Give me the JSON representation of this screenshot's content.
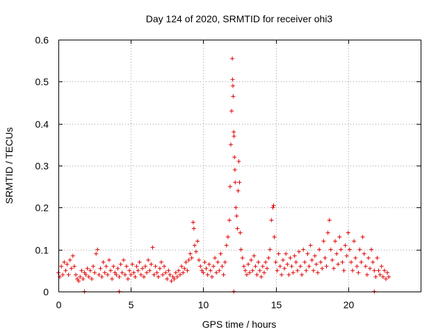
{
  "chart_data": {
    "type": "scatter",
    "title": "Day 124 of 2020, SRMTID for receiver ohi3",
    "xlabel": "GPS time / hours",
    "ylabel": "SRMTID / TECUs",
    "xlim": [
      0,
      25
    ],
    "ylim": [
      0,
      0.6
    ],
    "xticks": [
      0,
      5,
      10,
      15,
      20
    ],
    "xtick_labels": [
      "0",
      "5",
      "10",
      "15",
      "20"
    ],
    "yticks": [
      0,
      0.1,
      0.2,
      0.3,
      0.4,
      0.5,
      0.6
    ],
    "ytick_labels": [
      "0",
      "0.1",
      "0.2",
      "0.3",
      "0.4",
      "0.5",
      "0.6"
    ],
    "grid": true,
    "marker": "+",
    "color": "#e00000",
    "series": [
      {
        "name": "ohi3",
        "points": [
          [
            0.0,
            0.045
          ],
          [
            0.1,
            0.035
          ],
          [
            0.2,
            0.06
          ],
          [
            0.3,
            0.04
          ],
          [
            0.4,
            0.07
          ],
          [
            0.5,
            0.05
          ],
          [
            0.6,
            0.065
          ],
          [
            0.7,
            0.04
          ],
          [
            0.8,
            0.075
          ],
          [
            0.9,
            0.055
          ],
          [
            1.0,
            0.085
          ],
          [
            1.1,
            0.06
          ],
          [
            1.2,
            0.04
          ],
          [
            1.3,
            0.03
          ],
          [
            1.4,
            0.025
          ],
          [
            1.5,
            0.035
          ],
          [
            1.6,
            0.05
          ],
          [
            1.7,
            0.03
          ],
          [
            1.8,
            0.045
          ],
          [
            1.9,
            0.04
          ],
          [
            2.0,
            0.055
          ],
          [
            2.1,
            0.035
          ],
          [
            2.2,
            0.05
          ],
          [
            2.3,
            0.03
          ],
          [
            2.4,
            0.06
          ],
          [
            2.5,
            0.045
          ],
          [
            2.6,
            0.09
          ],
          [
            2.7,
            0.1
          ],
          [
            2.8,
            0.04
          ],
          [
            2.9,
            0.055
          ],
          [
            3.0,
            0.035
          ],
          [
            3.1,
            0.07
          ],
          [
            3.2,
            0.045
          ],
          [
            3.3,
            0.06
          ],
          [
            3.4,
            0.04
          ],
          [
            3.5,
            0.075
          ],
          [
            3.6,
            0.05
          ],
          [
            3.7,
            0.03
          ],
          [
            3.8,
            0.06
          ],
          [
            3.9,
            0.045
          ],
          [
            4.0,
            0.04
          ],
          [
            4.1,
            0.055
          ],
          [
            4.2,
            0.035
          ],
          [
            4.3,
            0.065
          ],
          [
            4.4,
            0.045
          ],
          [
            4.5,
            0.075
          ],
          [
            4.6,
            0.04
          ],
          [
            4.7,
            0.06
          ],
          [
            4.8,
            0.03
          ],
          [
            4.9,
            0.05
          ],
          [
            5.0,
            0.04
          ],
          [
            5.1,
            0.065
          ],
          [
            5.2,
            0.045
          ],
          [
            5.3,
            0.035
          ],
          [
            5.4,
            0.06
          ],
          [
            5.5,
            0.05
          ],
          [
            5.6,
            0.07
          ],
          [
            5.7,
            0.04
          ],
          [
            5.8,
            0.055
          ],
          [
            5.9,
            0.035
          ],
          [
            6.0,
            0.06
          ],
          [
            6.1,
            0.045
          ],
          [
            6.2,
            0.075
          ],
          [
            6.3,
            0.05
          ],
          [
            6.4,
            0.065
          ],
          [
            6.5,
            0.105
          ],
          [
            6.6,
            0.04
          ],
          [
            6.7,
            0.06
          ],
          [
            6.8,
            0.045
          ],
          [
            6.9,
            0.035
          ],
          [
            7.0,
            0.055
          ],
          [
            7.1,
            0.07
          ],
          [
            7.2,
            0.04
          ],
          [
            7.3,
            0.06
          ],
          [
            7.4,
            0.045
          ],
          [
            7.5,
            0.03
          ],
          [
            7.6,
            0.05
          ],
          [
            7.7,
            0.04
          ],
          [
            7.8,
            0.025
          ],
          [
            7.9,
            0.035
          ],
          [
            8.0,
            0.03
          ],
          [
            8.1,
            0.045
          ],
          [
            8.2,
            0.035
          ],
          [
            8.3,
            0.05
          ],
          [
            8.4,
            0.04
          ],
          [
            8.5,
            0.06
          ],
          [
            8.6,
            0.045
          ],
          [
            8.7,
            0.055
          ],
          [
            8.8,
            0.07
          ],
          [
            8.9,
            0.05
          ],
          [
            9.0,
            0.075
          ],
          [
            9.1,
            0.09
          ],
          [
            9.2,
            0.08
          ],
          [
            9.3,
            0.165
          ],
          [
            9.35,
            0.15
          ],
          [
            9.4,
            0.11
          ],
          [
            9.5,
            0.095
          ],
          [
            9.6,
            0.12
          ],
          [
            9.7,
            0.075
          ],
          [
            9.8,
            0.06
          ],
          [
            9.9,
            0.05
          ],
          [
            10.0,
            0.045
          ],
          [
            10.1,
            0.07
          ],
          [
            10.2,
            0.055
          ],
          [
            10.3,
            0.04
          ],
          [
            10.4,
            0.065
          ],
          [
            10.5,
            0.05
          ],
          [
            10.6,
            0.035
          ],
          [
            10.7,
            0.06
          ],
          [
            10.8,
            0.08
          ],
          [
            10.9,
            0.045
          ],
          [
            11.0,
            0.07
          ],
          [
            11.1,
            0.05
          ],
          [
            11.2,
            0.09
          ],
          [
            11.3,
            0.06
          ],
          [
            11.4,
            0.04
          ],
          [
            11.5,
            0.07
          ],
          [
            11.6,
            0.11
          ],
          [
            11.7,
            0.13
          ],
          [
            11.8,
            0.17
          ],
          [
            11.85,
            0.25
          ],
          [
            11.9,
            0.35
          ],
          [
            11.95,
            0.43
          ],
          [
            12.0,
            0.555
          ],
          [
            12.02,
            0.505
          ],
          [
            12.04,
            0.49
          ],
          [
            12.06,
            0.465
          ],
          [
            12.1,
            0.38
          ],
          [
            12.12,
            0.37
          ],
          [
            12.15,
            0.32
          ],
          [
            12.18,
            0.29
          ],
          [
            12.2,
            0.26
          ],
          [
            12.25,
            0.2
          ],
          [
            12.3,
            0.18
          ],
          [
            12.35,
            0.15
          ],
          [
            12.4,
            0.24
          ],
          [
            12.45,
            0.31
          ],
          [
            12.5,
            0.26
          ],
          [
            12.55,
            0.14
          ],
          [
            12.6,
            0.1
          ],
          [
            12.7,
            0.08
          ],
          [
            12.8,
            0.06
          ],
          [
            12.9,
            0.05
          ],
          [
            13.0,
            0.04
          ],
          [
            13.1,
            0.065
          ],
          [
            13.2,
            0.045
          ],
          [
            13.3,
            0.075
          ],
          [
            13.4,
            0.05
          ],
          [
            13.5,
            0.085
          ],
          [
            13.6,
            0.06
          ],
          [
            13.7,
            0.04
          ],
          [
            13.8,
            0.07
          ],
          [
            13.9,
            0.05
          ],
          [
            14.0,
            0.035
          ],
          [
            14.1,
            0.06
          ],
          [
            14.2,
            0.045
          ],
          [
            14.3,
            0.07
          ],
          [
            14.4,
            0.055
          ],
          [
            14.5,
            0.08
          ],
          [
            14.6,
            0.1
          ],
          [
            14.7,
            0.17
          ],
          [
            14.8,
            0.2
          ],
          [
            14.85,
            0.205
          ],
          [
            14.9,
            0.13
          ],
          [
            15.0,
            0.07
          ],
          [
            15.1,
            0.05
          ],
          [
            15.2,
            0.09
          ],
          [
            15.3,
            0.06
          ],
          [
            15.4,
            0.04
          ],
          [
            15.5,
            0.075
          ],
          [
            15.6,
            0.055
          ],
          [
            15.7,
            0.09
          ],
          [
            15.8,
            0.065
          ],
          [
            15.9,
            0.04
          ],
          [
            16.0,
            0.08
          ],
          [
            16.1,
            0.06
          ],
          [
            16.2,
            0.045
          ],
          [
            16.3,
            0.085
          ],
          [
            16.4,
            0.07
          ],
          [
            16.5,
            0.05
          ],
          [
            16.6,
            0.095
          ],
          [
            16.7,
            0.06
          ],
          [
            16.8,
            0.04
          ],
          [
            16.9,
            0.1
          ],
          [
            17.0,
            0.07
          ],
          [
            17.1,
            0.05
          ],
          [
            17.2,
            0.09
          ],
          [
            17.3,
            0.06
          ],
          [
            17.4,
            0.11
          ],
          [
            17.5,
            0.075
          ],
          [
            17.6,
            0.05
          ],
          [
            17.7,
            0.085
          ],
          [
            17.8,
            0.065
          ],
          [
            17.9,
            0.045
          ],
          [
            18.0,
            0.1
          ],
          [
            18.1,
            0.07
          ],
          [
            18.2,
            0.055
          ],
          [
            18.3,
            0.12
          ],
          [
            18.4,
            0.08
          ],
          [
            18.5,
            0.06
          ],
          [
            18.6,
            0.14
          ],
          [
            18.7,
            0.17
          ],
          [
            18.8,
            0.1
          ],
          [
            18.9,
            0.075
          ],
          [
            19.0,
            0.055
          ],
          [
            19.1,
            0.12
          ],
          [
            19.2,
            0.09
          ],
          [
            19.3,
            0.065
          ],
          [
            19.4,
            0.13
          ],
          [
            19.5,
            0.1
          ],
          [
            19.6,
            0.07
          ],
          [
            19.7,
            0.05
          ],
          [
            19.8,
            0.11
          ],
          [
            19.9,
            0.085
          ],
          [
            20.0,
            0.14
          ],
          [
            20.1,
            0.1
          ],
          [
            20.2,
            0.07
          ],
          [
            20.3,
            0.05
          ],
          [
            20.4,
            0.12
          ],
          [
            20.5,
            0.08
          ],
          [
            20.6,
            0.06
          ],
          [
            20.7,
            0.045
          ],
          [
            20.8,
            0.1
          ],
          [
            20.9,
            0.07
          ],
          [
            21.0,
            0.13
          ],
          [
            21.1,
            0.09
          ],
          [
            21.2,
            0.06
          ],
          [
            21.3,
            0.04
          ],
          [
            21.4,
            0.08
          ],
          [
            21.5,
            0.055
          ],
          [
            21.6,
            0.1
          ],
          [
            21.7,
            0.07
          ],
          [
            21.8,
            0.05
          ],
          [
            21.9,
            0.035
          ],
          [
            22.0,
            0.08
          ],
          [
            22.1,
            0.05
          ],
          [
            22.2,
            0.04
          ],
          [
            22.3,
            0.06
          ],
          [
            22.4,
            0.035
          ],
          [
            22.5,
            0.05
          ],
          [
            22.6,
            0.03
          ],
          [
            22.7,
            0.045
          ],
          [
            22.8,
            0.035
          ],
          [
            1.8,
            0.0
          ],
          [
            4.2,
            0.0
          ],
          [
            12.1,
            0.0
          ],
          [
            21.8,
            0.0
          ]
        ]
      }
    ]
  }
}
